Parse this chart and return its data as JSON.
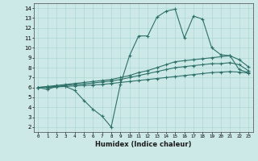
{
  "xlabel": "Humidex (Indice chaleur)",
  "background_color": "#cce9e7",
  "line_color": "#2d7068",
  "x_data": [
    0,
    1,
    2,
    3,
    4,
    5,
    6,
    7,
    8,
    9,
    10,
    11,
    12,
    13,
    14,
    15,
    16,
    17,
    18,
    19,
    20,
    21,
    22,
    23
  ],
  "line1": [
    6.0,
    5.8,
    6.1,
    6.1,
    5.7,
    4.7,
    3.8,
    3.1,
    2.0,
    6.3,
    9.2,
    11.2,
    11.2,
    13.1,
    13.7,
    13.9,
    11.0,
    13.2,
    12.9,
    10.0,
    9.3,
    9.2,
    7.8,
    7.5
  ],
  "line2": [
    6.0,
    6.1,
    6.2,
    6.3,
    6.4,
    6.5,
    6.6,
    6.7,
    6.8,
    7.0,
    7.2,
    7.5,
    7.7,
    8.0,
    8.3,
    8.6,
    8.7,
    8.8,
    8.9,
    9.0,
    9.1,
    9.2,
    8.8,
    8.1
  ],
  "line3": [
    6.0,
    6.05,
    6.1,
    6.2,
    6.3,
    6.35,
    6.45,
    6.55,
    6.65,
    6.8,
    7.0,
    7.2,
    7.4,
    7.6,
    7.8,
    8.0,
    8.1,
    8.2,
    8.3,
    8.4,
    8.4,
    8.5,
    8.3,
    7.7
  ],
  "line4": [
    6.0,
    6.0,
    6.05,
    6.1,
    6.15,
    6.2,
    6.25,
    6.3,
    6.4,
    6.5,
    6.6,
    6.7,
    6.8,
    6.9,
    7.0,
    7.1,
    7.2,
    7.3,
    7.4,
    7.5,
    7.55,
    7.6,
    7.55,
    7.45
  ],
  "xlim": [
    -0.5,
    23.5
  ],
  "ylim": [
    1.5,
    14.5
  ],
  "yticks": [
    2,
    3,
    4,
    5,
    6,
    7,
    8,
    9,
    10,
    11,
    12,
    13,
    14
  ],
  "xticks": [
    0,
    1,
    2,
    3,
    4,
    5,
    6,
    7,
    8,
    9,
    10,
    11,
    12,
    13,
    14,
    15,
    16,
    17,
    18,
    19,
    20,
    21,
    22,
    23
  ]
}
